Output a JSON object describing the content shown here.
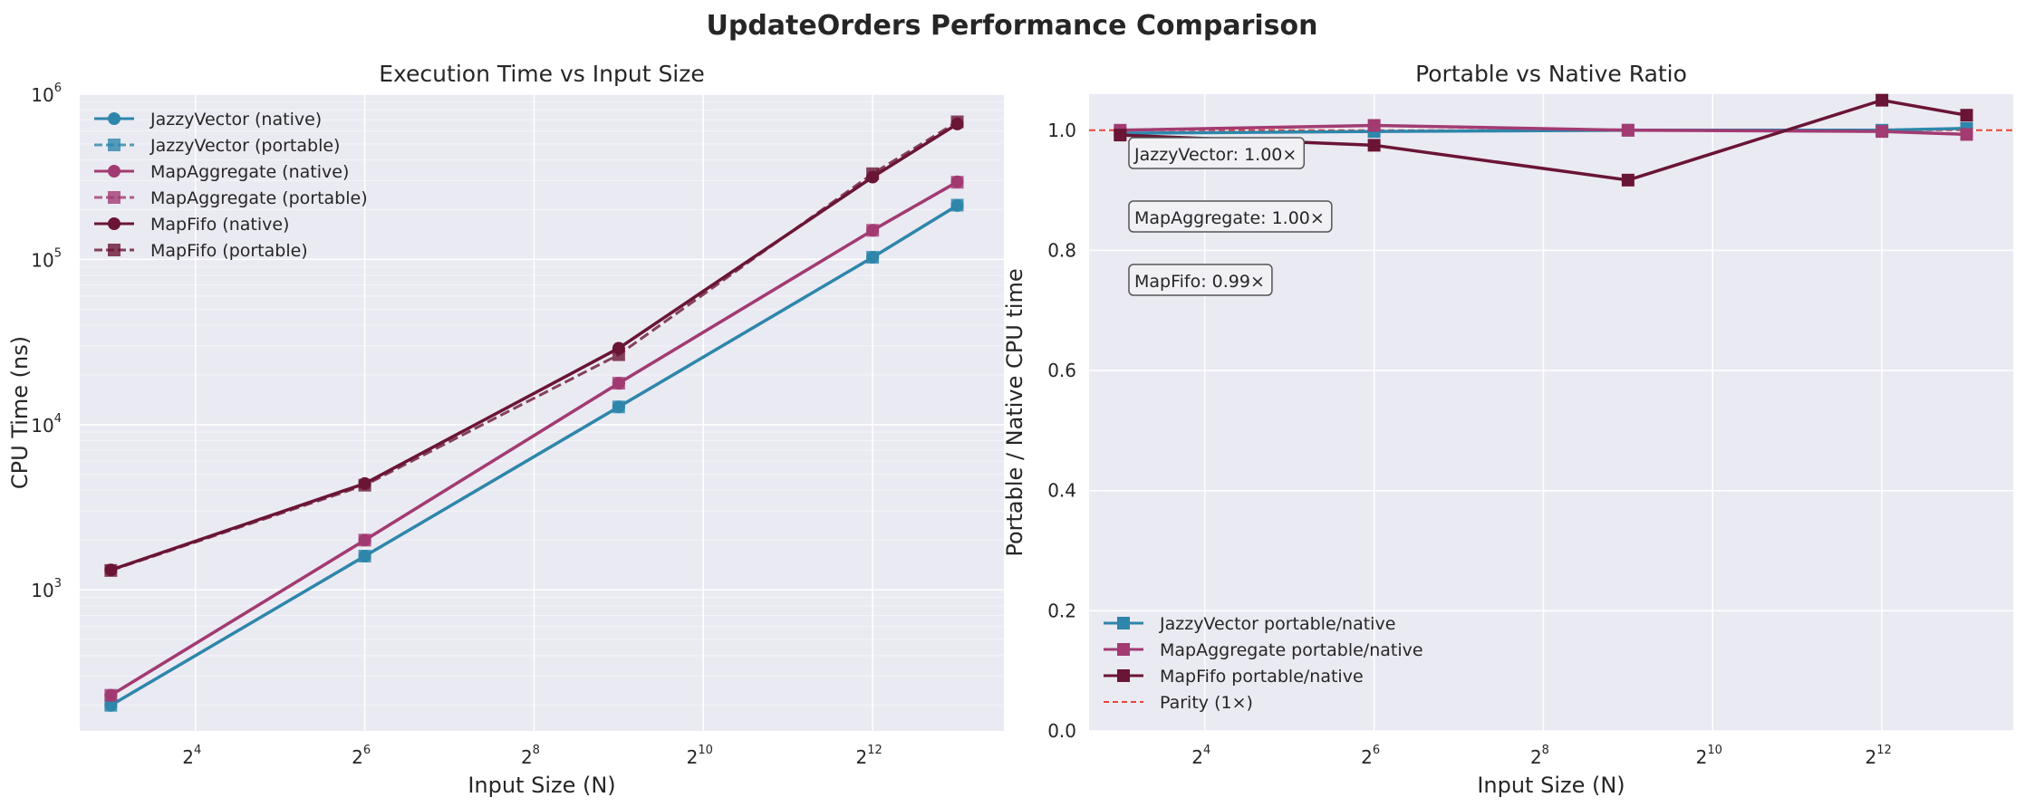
{
  "figure_title": "UpdateOrders Performance Comparison",
  "colors": {
    "JazzyVector": "#2e86ab",
    "MapAggregate": "#a23b72",
    "MapFifo": "#6a1535",
    "parity": "#e8463a",
    "panel_bg": "#eaeaf2",
    "grid": "#ffffff"
  },
  "chart_data": [
    {
      "type": "line",
      "title": "Execution Time vs Input Size",
      "xlabel": "Input Size (N)",
      "ylabel": "CPU Time (ns)",
      "x_scale": "log2",
      "y_scale": "log10",
      "xlim": [
        6.2,
        12000
      ],
      "ylim": [
        140,
        1000000
      ],
      "x_ticks": [
        {
          "base": "2",
          "exp": "4",
          "value": 16
        },
        {
          "base": "2",
          "exp": "6",
          "value": 64
        },
        {
          "base": "2",
          "exp": "8",
          "value": 256
        },
        {
          "base": "2",
          "exp": "10",
          "value": 1024
        },
        {
          "base": "2",
          "exp": "12",
          "value": 4096
        }
      ],
      "y_ticks": [
        {
          "base": "10",
          "exp": "3",
          "value": 1000
        },
        {
          "base": "10",
          "exp": "4",
          "value": 10000
        },
        {
          "base": "10",
          "exp": "5",
          "value": 100000
        },
        {
          "base": "10",
          "exp": "6",
          "value": 1000000
        }
      ],
      "grid": true,
      "legend_position": "upper-left",
      "x": [
        8,
        64,
        512,
        4096,
        8192
      ],
      "series": [
        {
          "name": "JazzyVector (native)",
          "color_key": "JazzyVector",
          "marker": "circle",
          "dashed": false,
          "values": [
            200,
            1600,
            12800,
            103000,
            212000
          ]
        },
        {
          "name": "JazzyVector (portable)",
          "color_key": "JazzyVector",
          "marker": "square",
          "dashed": true,
          "values": [
            200,
            1600,
            12800,
            103000,
            213000
          ]
        },
        {
          "name": "MapAggregate (native)",
          "color_key": "MapAggregate",
          "marker": "circle",
          "dashed": false,
          "values": [
            230,
            2000,
            17800,
            150000,
            295000
          ]
        },
        {
          "name": "MapAggregate (portable)",
          "color_key": "MapAggregate",
          "marker": "square",
          "dashed": true,
          "values": [
            230,
            2000,
            17800,
            150000,
            293000
          ]
        },
        {
          "name": "MapFifo (native)",
          "color_key": "MapFifo",
          "marker": "circle",
          "dashed": false,
          "values": [
            1320,
            4400,
            29000,
            315000,
            660000
          ]
        },
        {
          "name": "MapFifo (portable)",
          "color_key": "MapFifo",
          "marker": "square",
          "dashed": true,
          "values": [
            1310,
            4300,
            26500,
            330000,
            680000
          ]
        }
      ]
    },
    {
      "type": "line",
      "title": "Portable vs Native Ratio",
      "xlabel": "Input Size (N)",
      "ylabel": "Portable / Native CPU time",
      "x_scale": "log2",
      "y_scale": "linear",
      "xlim": [
        6.2,
        12000
      ],
      "ylim": [
        0,
        1.06
      ],
      "x_ticks": [
        {
          "base": "2",
          "exp": "4",
          "value": 16
        },
        {
          "base": "2",
          "exp": "6",
          "value": 64
        },
        {
          "base": "2",
          "exp": "8",
          "value": 256
        },
        {
          "base": "2",
          "exp": "10",
          "value": 1024
        },
        {
          "base": "2",
          "exp": "12",
          "value": 4096
        }
      ],
      "y_ticks": [
        {
          "label": "0.0",
          "value": 0
        },
        {
          "label": "0.2",
          "value": 0.2
        },
        {
          "label": "0.4",
          "value": 0.4
        },
        {
          "label": "0.6",
          "value": 0.6
        },
        {
          "label": "0.8",
          "value": 0.8
        },
        {
          "label": "1.0",
          "value": 1.0
        }
      ],
      "grid": true,
      "legend_position": "lower-left",
      "x": [
        8,
        64,
        512,
        4096,
        8192
      ],
      "series": [
        {
          "name": "JazzyVector portable/native",
          "color_key": "JazzyVector",
          "marker": "square",
          "dashed": false,
          "values": [
            0.995,
            0.998,
            1.0,
            1.0,
            1.003
          ]
        },
        {
          "name": "MapAggregate portable/native",
          "color_key": "MapAggregate",
          "marker": "square",
          "dashed": false,
          "values": [
            1.0,
            1.008,
            1.0,
            0.998,
            0.993
          ]
        },
        {
          "name": "MapFifo portable/native",
          "color_key": "MapFifo",
          "marker": "square",
          "dashed": false,
          "values": [
            0.992,
            0.975,
            0.917,
            1.05,
            1.025
          ]
        }
      ],
      "reference_line": {
        "name": "Parity (1×)",
        "value": 1.0,
        "color_key": "parity",
        "dashed": true
      },
      "annotations": [
        "JazzyVector: 1.00×",
        "MapAggregate: 1.00×",
        "MapFifo: 0.99×"
      ]
    }
  ]
}
